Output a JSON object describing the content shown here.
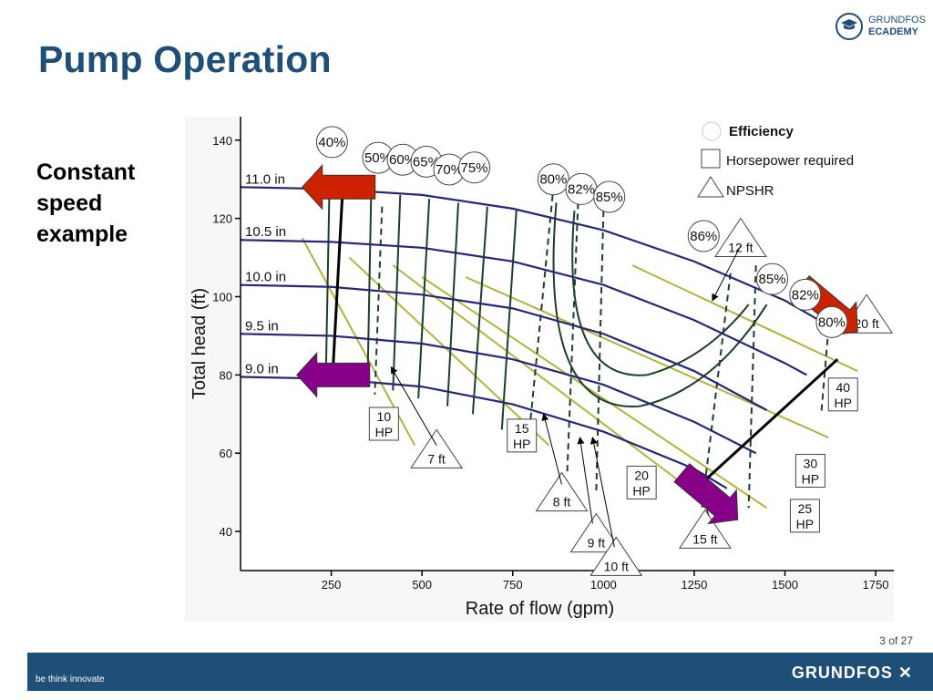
{
  "header": {
    "title": "Pump Operation",
    "logo_line1": "GRUNDFOS",
    "logo_line2": "ECADEMY",
    "logo_icon": "graduation-cap-icon"
  },
  "subtitle_lines": [
    "Constant",
    "speed",
    "example"
  ],
  "footer": {
    "page_number": "3 of 27",
    "tagline": "be think innovate",
    "brand": "GRUNDFOS",
    "brand_color": "#1f4e79"
  },
  "chart_data": {
    "type": "line",
    "xlabel": "Rate of flow (gpm)",
    "ylabel": "Total head (ft)",
    "xlim": [
      0,
      1800
    ],
    "ylim": [
      30,
      146
    ],
    "xticks": [
      250,
      500,
      750,
      1000,
      1250,
      1500,
      1750
    ],
    "yticks": [
      40,
      60,
      80,
      100,
      120,
      140
    ],
    "grid": false,
    "legend_position": "top-right",
    "legend": [
      {
        "shape": "circle",
        "label": "Efficiency"
      },
      {
        "shape": "square",
        "label": "Horsepower required"
      },
      {
        "shape": "triangle",
        "label": "NPSHR"
      }
    ],
    "impeller_curves": [
      {
        "name": "11.0 in",
        "x": [
          0,
          250,
          500,
          750,
          1000,
          1250,
          1500,
          1650
        ],
        "y": [
          128,
          127.5,
          126,
          122.5,
          117,
          109,
          99,
          91
        ]
      },
      {
        "name": "10.5 in",
        "x": [
          0,
          250,
          500,
          750,
          1000,
          1250,
          1500,
          1560
        ],
        "y": [
          114.5,
          114,
          112.5,
          109,
          103,
          94,
          83,
          80
        ]
      },
      {
        "name": "10.0 in",
        "x": [
          0,
          250,
          500,
          750,
          1000,
          1250,
          1450
        ],
        "y": [
          103,
          102.5,
          100.5,
          97,
          90.5,
          81,
          71
        ]
      },
      {
        "name": "9.5 in",
        "x": [
          0,
          250,
          500,
          750,
          1000,
          1250,
          1420
        ],
        "y": [
          90.5,
          90,
          88,
          84,
          77.5,
          68,
          60
        ]
      },
      {
        "name": "9.0 in",
        "x": [
          0,
          250,
          500,
          750,
          1000,
          1250,
          1340
        ],
        "y": [
          79.5,
          79,
          77,
          72.5,
          65.5,
          56,
          51
        ]
      }
    ],
    "efficiency_labels": [
      {
        "label": "40%",
        "x": 252,
        "y": 139.5
      },
      {
        "label": "50%",
        "x": 379,
        "y": 135.5
      },
      {
        "label": "60%",
        "x": 447,
        "y": 135
      },
      {
        "label": "65%",
        "x": 512,
        "y": 134.5
      },
      {
        "label": "70%",
        "x": 575,
        "y": 132.5
      },
      {
        "label": "75%",
        "x": 644,
        "y": 133
      },
      {
        "label": "80%",
        "x": 862,
        "y": 130
      },
      {
        "label": "82%",
        "x": 939,
        "y": 127.5
      },
      {
        "label": "85%",
        "x": 1016,
        "y": 125.5
      },
      {
        "label": "86%",
        "x": 1276,
        "y": 115.5
      },
      {
        "label": "85%",
        "x": 1465,
        "y": 104.5
      },
      {
        "label": "82%",
        "x": 1556,
        "y": 100.5
      },
      {
        "label": "80%",
        "x": 1629,
        "y": 93.5
      }
    ],
    "horsepower_labels": [
      {
        "lines": [
          "10",
          "HP"
        ],
        "x": 395,
        "y": 67.5
      },
      {
        "lines": [
          "15",
          "HP"
        ],
        "x": 775,
        "y": 64.5
      },
      {
        "lines": [
          "20",
          "HP"
        ],
        "x": 1105,
        "y": 52.5
      },
      {
        "lines": [
          "25",
          "HP"
        ],
        "x": 1555,
        "y": 44
      },
      {
        "lines": [
          "30",
          "HP"
        ],
        "x": 1570,
        "y": 55.5
      },
      {
        "lines": [
          "40",
          "HP"
        ],
        "x": 1660,
        "y": 75
      }
    ],
    "npshr_labels": [
      {
        "label": "7 ft",
        "x": 540,
        "y": 59.5
      },
      {
        "label": "8 ft",
        "x": 885,
        "y": 48.5
      },
      {
        "label": "9 ft",
        "x": 980,
        "y": 38
      },
      {
        "label": "10 ft",
        "x": 1035,
        "y": 32
      },
      {
        "label": "12 ft",
        "x": 1378,
        "y": 113.5
      },
      {
        "label": "15 ft",
        "x": 1280,
        "y": 39
      },
      {
        "label": "20 ft",
        "x": 1725,
        "y": 94
      }
    ]
  }
}
